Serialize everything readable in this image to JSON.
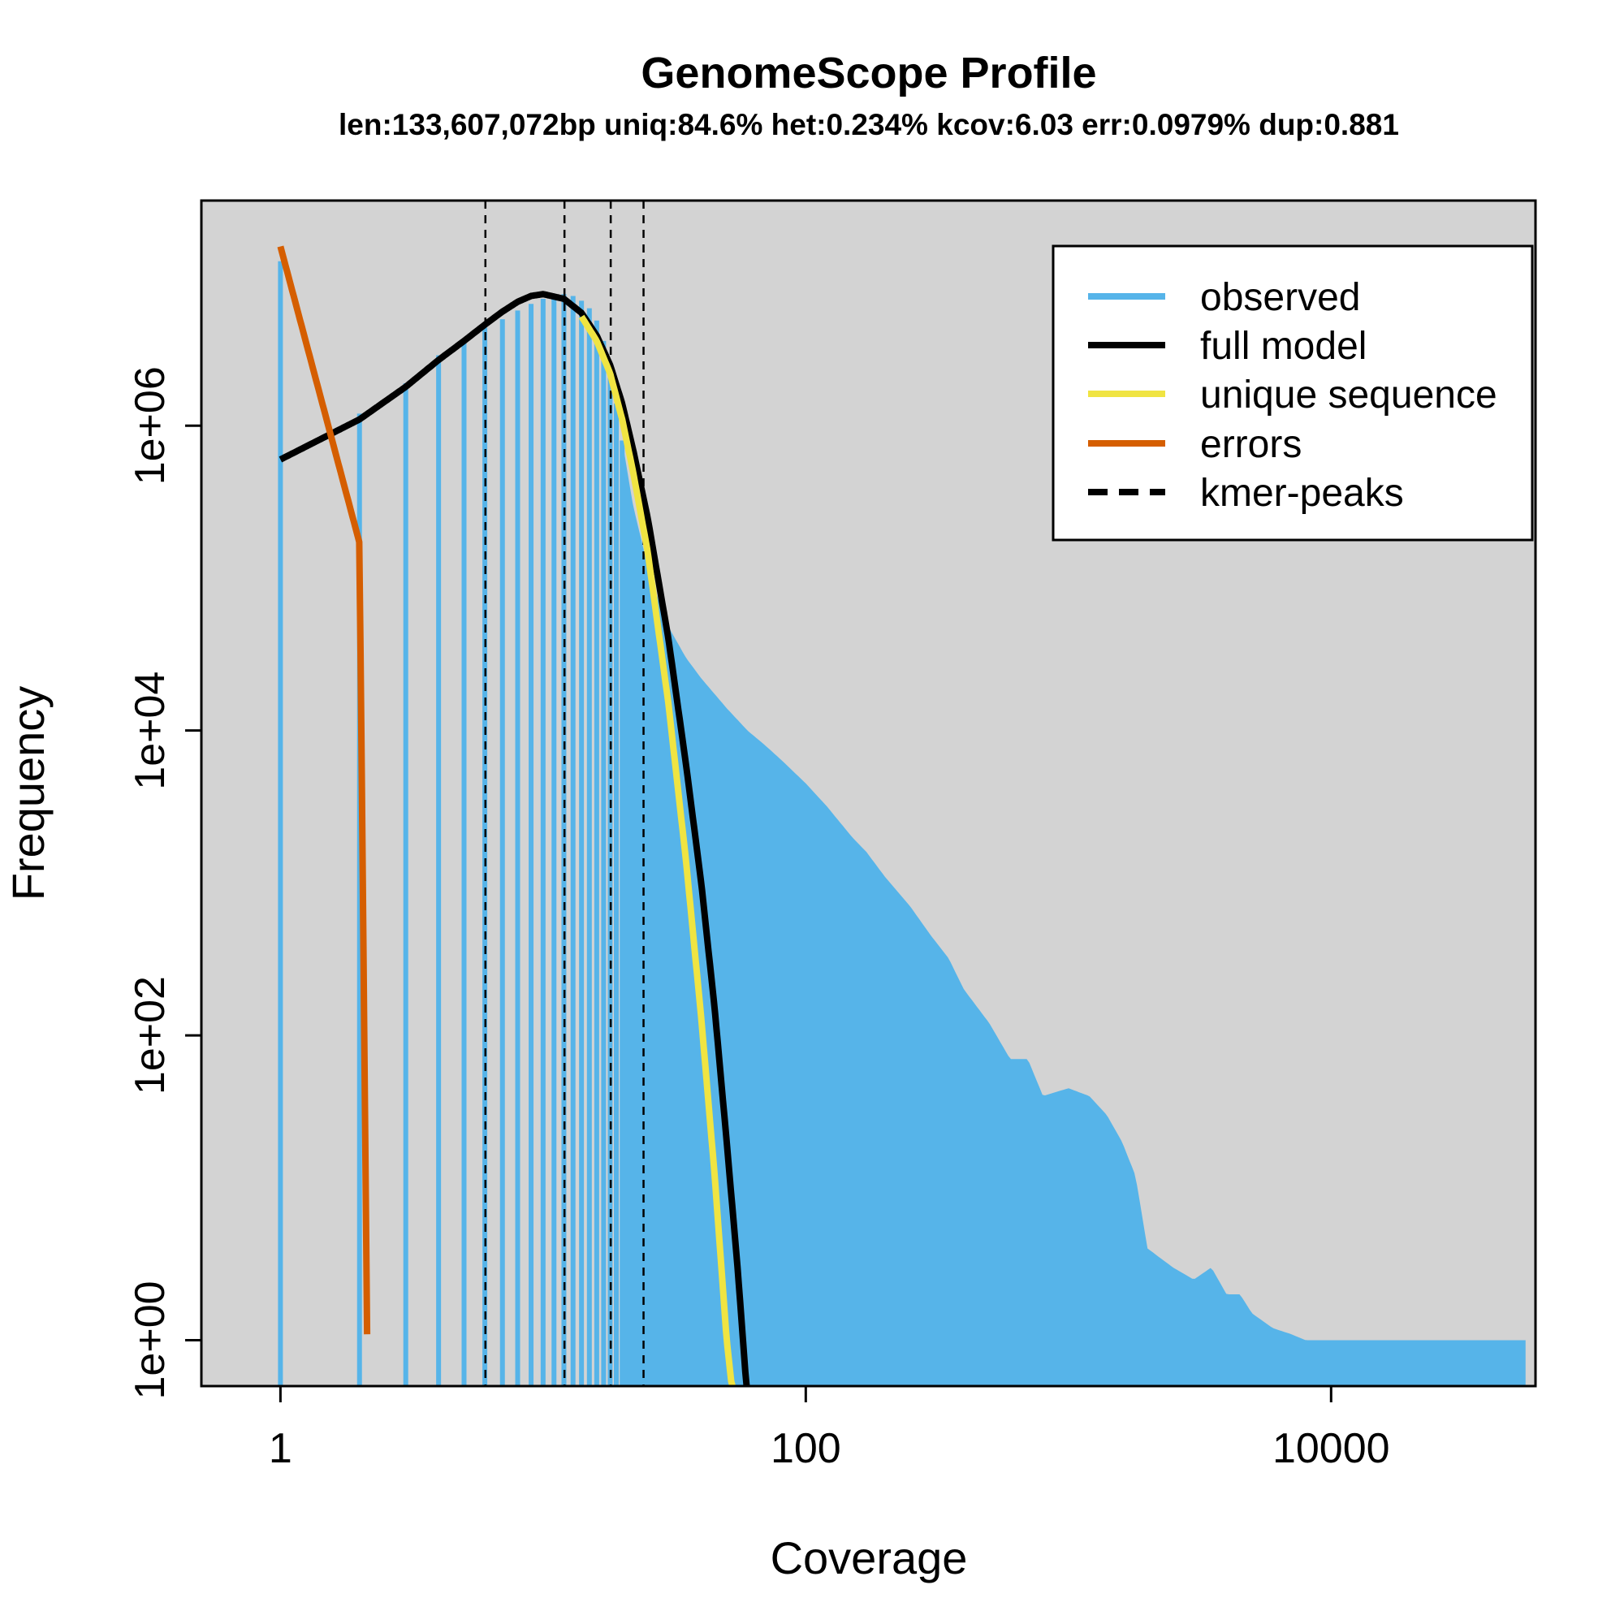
{
  "chart_data": {
    "type": "bar",
    "title": "GenomeScope Profile",
    "subtitle": "len:133,607,072bp uniq:84.6% het:0.234% kcov:6.03 err:0.0979% dup:0.881",
    "xlabel": "Coverage",
    "ylabel": "Frequency",
    "x_scale": "log10",
    "y_scale": "log10",
    "xlim": [
      0.5,
      60000
    ],
    "ylim": [
      0.5,
      30000000
    ],
    "x_ticks": [
      1,
      100,
      10000
    ],
    "x_tick_labels": [
      "1",
      "100",
      "10000"
    ],
    "y_ticks": [
      1,
      100,
      10000,
      1000000
    ],
    "y_tick_labels": [
      "1e+00",
      "1e+02",
      "1e+04",
      "1e+06"
    ],
    "background": "#d3d3d3",
    "grid": false,
    "legend_position": "top-right",
    "series": [
      {
        "name": "observed",
        "kind": "histogram",
        "color": "#56b4e9",
        "points": [
          [
            1,
            12000000
          ],
          [
            2,
            1200000
          ],
          [
            3,
            1900000
          ],
          [
            4,
            2900000
          ],
          [
            5,
            3700000
          ],
          [
            6,
            4400000
          ],
          [
            7,
            5000000
          ],
          [
            8,
            5700000
          ],
          [
            9,
            6300000
          ],
          [
            10,
            6800000
          ],
          [
            11,
            7200000
          ],
          [
            12,
            7300000
          ],
          [
            13,
            7100000
          ],
          [
            14,
            6600000
          ],
          [
            15,
            5900000
          ],
          [
            16,
            4900000
          ],
          [
            17,
            3600000
          ],
          [
            18,
            2300000
          ],
          [
            19,
            1400000
          ],
          [
            20,
            800000
          ],
          [
            22,
            300000
          ],
          [
            25,
            120000
          ],
          [
            28,
            65000
          ],
          [
            30,
            48000
          ],
          [
            35,
            30000
          ],
          [
            40,
            22000
          ],
          [
            50,
            14000
          ],
          [
            60,
            10000
          ],
          [
            70,
            8000
          ],
          [
            80,
            6500
          ],
          [
            100,
            4500
          ],
          [
            120,
            3200
          ],
          [
            150,
            2000
          ],
          [
            170,
            1600
          ],
          [
            200,
            1100
          ],
          [
            250,
            700
          ],
          [
            300,
            450
          ],
          [
            350,
            320
          ],
          [
            400,
            200
          ],
          [
            500,
            120
          ],
          [
            600,
            70
          ],
          [
            700,
            70
          ],
          [
            800,
            40
          ],
          [
            1000,
            45
          ],
          [
            1200,
            40
          ],
          [
            1400,
            30
          ],
          [
            1600,
            20
          ],
          [
            1800,
            12
          ],
          [
            2000,
            4
          ],
          [
            2500,
            3
          ],
          [
            3000,
            2.5
          ],
          [
            3500,
            3
          ],
          [
            4000,
            2
          ],
          [
            4500,
            2
          ],
          [
            5000,
            1.5
          ],
          [
            6000,
            1.2
          ],
          [
            7000,
            1.1
          ],
          [
            8000,
            1
          ],
          [
            10000,
            1
          ],
          [
            12000,
            1
          ],
          [
            14000,
            1
          ],
          [
            16000,
            1
          ],
          [
            25000,
            1
          ],
          [
            35000,
            1
          ],
          [
            40000,
            1
          ],
          [
            45000,
            1
          ],
          [
            55000,
            1
          ]
        ]
      },
      {
        "name": "full model",
        "kind": "line",
        "color": "#000000",
        "points": [
          [
            1,
            600000
          ],
          [
            2,
            1100000
          ],
          [
            3,
            1800000
          ],
          [
            4,
            2700000
          ],
          [
            5,
            3600000
          ],
          [
            6,
            4600000
          ],
          [
            7,
            5600000
          ],
          [
            8,
            6500000
          ],
          [
            9,
            7100000
          ],
          [
            10,
            7300000
          ],
          [
            12,
            6800000
          ],
          [
            14,
            5500000
          ],
          [
            16,
            3900000
          ],
          [
            18,
            2500000
          ],
          [
            20,
            1400000
          ],
          [
            22,
            700000
          ],
          [
            25,
            250000
          ],
          [
            30,
            40000
          ],
          [
            35,
            6000
          ],
          [
            40,
            1000
          ],
          [
            45,
            150
          ],
          [
            50,
            20
          ],
          [
            55,
            3
          ],
          [
            60,
            0.4
          ]
        ]
      },
      {
        "name": "unique sequence",
        "kind": "line",
        "color": "#f0e442",
        "points": [
          [
            14,
            5200000
          ],
          [
            16,
            3600000
          ],
          [
            18,
            2200000
          ],
          [
            20,
            1100000
          ],
          [
            22,
            500000
          ],
          [
            25,
            150000
          ],
          [
            30,
            15000
          ],
          [
            35,
            1400
          ],
          [
            40,
            130
          ],
          [
            45,
            12
          ],
          [
            50,
            1
          ],
          [
            53,
            0.4
          ]
        ]
      },
      {
        "name": "errors",
        "kind": "line",
        "color": "#d55e00",
        "points": [
          [
            1,
            15000000
          ],
          [
            2,
            170000
          ],
          [
            2.15,
            0.4
          ]
        ]
      },
      {
        "name": "kmer-peaks",
        "kind": "vline",
        "color": "#000000",
        "x": [
          6.03,
          12.06,
          18.09,
          24.12
        ]
      }
    ]
  }
}
